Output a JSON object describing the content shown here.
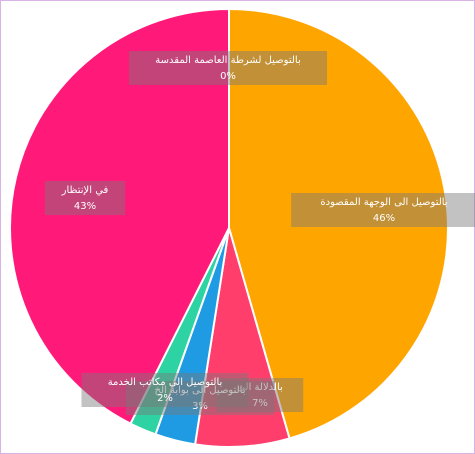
{
  "chart_data": {
    "type": "pie",
    "title": "",
    "slices": [
      {
        "label": "بالتوصيل الى الوجهة المقصودة",
        "value_label": "46%",
        "value": 46,
        "color": "#FFA500"
      },
      {
        "label": "بالدلالة الى",
        "value_label": "7%",
        "value": 7,
        "color": "#FF3E6C"
      },
      {
        "label": "بالتوصيل الى بوابة الخ",
        "value_label": "3%",
        "value": 3,
        "color": "#1E9BE3"
      },
      {
        "label": "بالتوصيل الى مكاتب الخدمة",
        "value_label": "2%",
        "value": 2,
        "color": "#2ED3A3"
      },
      {
        "label": "في الإنتظار",
        "value_label": "43%",
        "value": 43,
        "color": "#FF1A7A"
      },
      {
        "label": "بالتوصيل لشرطة العاصمة المقدسة",
        "value_label": "0%",
        "value": 0,
        "color": "#B266D6"
      }
    ]
  }
}
